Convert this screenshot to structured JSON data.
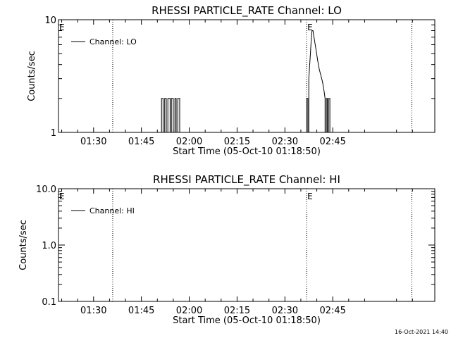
{
  "footer": {
    "timestamp": "16-Oct-2021 14:40"
  },
  "chart_data": [
    {
      "type": "line",
      "title": "RHESSI PARTICLE_RATE Channel: LO",
      "xlabel": "Start Time (05-Oct-10 01:18:50)",
      "ylabel": "Counts/sec",
      "yscale": "log",
      "ylim": [
        1,
        10
      ],
      "yticks": [
        {
          "value": 1,
          "label": "1"
        },
        {
          "value": 10,
          "label": "10"
        }
      ],
      "xlim": [
        79,
        197
      ],
      "xticks": [
        {
          "value": 90,
          "label": "01:30"
        },
        {
          "value": 105,
          "label": "01:45"
        },
        {
          "value": 120,
          "label": "02:00"
        },
        {
          "value": 135,
          "label": "02:15"
        },
        {
          "value": 150,
          "label": "02:30"
        },
        {
          "value": 165,
          "label": "02:45"
        }
      ],
      "legend_position": "top-left",
      "eclipse_lines": [
        96,
        156.8,
        189.8
      ],
      "eclipse_marker_label": "E",
      "series": [
        {
          "name": "Channel: LO",
          "x": [
            79,
            111.3,
            111.3,
            111.8,
            111.8,
            112.3,
            112.3,
            112.8,
            112.8,
            113.3,
            113.3,
            114.0,
            114.0,
            114.4,
            114.4,
            115.0,
            115.0,
            115.5,
            115.5,
            115.9,
            115.9,
            116.4,
            116.4,
            117.0,
            117.0,
            156.8,
            156.8,
            157.2,
            157.2,
            157.5,
            157.5,
            158.0,
            158.3,
            158.5,
            158.8,
            159.3,
            159.8,
            160.3,
            160.8,
            161.3,
            161.8,
            162.3,
            162.6,
            162.6,
            163.0,
            163.0,
            163.3,
            163.3,
            163.7,
            163.7,
            164.1,
            164.1,
            164.6,
            164.6,
            197
          ],
          "values": [
            1,
            1,
            2,
            2,
            1,
            1,
            2,
            2,
            1,
            1,
            2,
            2,
            1,
            1,
            2,
            2,
            1,
            1,
            2,
            2,
            1,
            1,
            2,
            2,
            1,
            1,
            2,
            2,
            1,
            1,
            3,
            5,
            7,
            8,
            8,
            6.5,
            5.3,
            4.3,
            3.6,
            3.2,
            2.8,
            2.3,
            2,
            1,
            1,
            2,
            2,
            1,
            1,
            2,
            2,
            1,
            1,
            1,
            1
          ]
        }
      ]
    },
    {
      "type": "line",
      "title": "RHESSI PARTICLE_RATE Channel: HI",
      "xlabel": "Start Time (05-Oct-10 01:18:50)",
      "ylabel": "Counts/sec",
      "yscale": "log",
      "ylim": [
        0.1,
        10
      ],
      "yticks": [
        {
          "value": 0.1,
          "label": "0.1"
        },
        {
          "value": 1,
          "label": "1.0"
        },
        {
          "value": 10,
          "label": "10.0"
        }
      ],
      "xlim": [
        79,
        197
      ],
      "xticks": [
        {
          "value": 90,
          "label": "01:30"
        },
        {
          "value": 105,
          "label": "01:45"
        },
        {
          "value": 120,
          "label": "02:00"
        },
        {
          "value": 135,
          "label": "02:15"
        },
        {
          "value": 150,
          "label": "02:30"
        },
        {
          "value": 165,
          "label": "02:45"
        }
      ],
      "legend_position": "top-left",
      "eclipse_lines": [
        96,
        156.8,
        189.8
      ],
      "eclipse_marker_label": "E",
      "series": [
        {
          "name": "Channel: HI",
          "x": [],
          "values": []
        }
      ]
    }
  ]
}
